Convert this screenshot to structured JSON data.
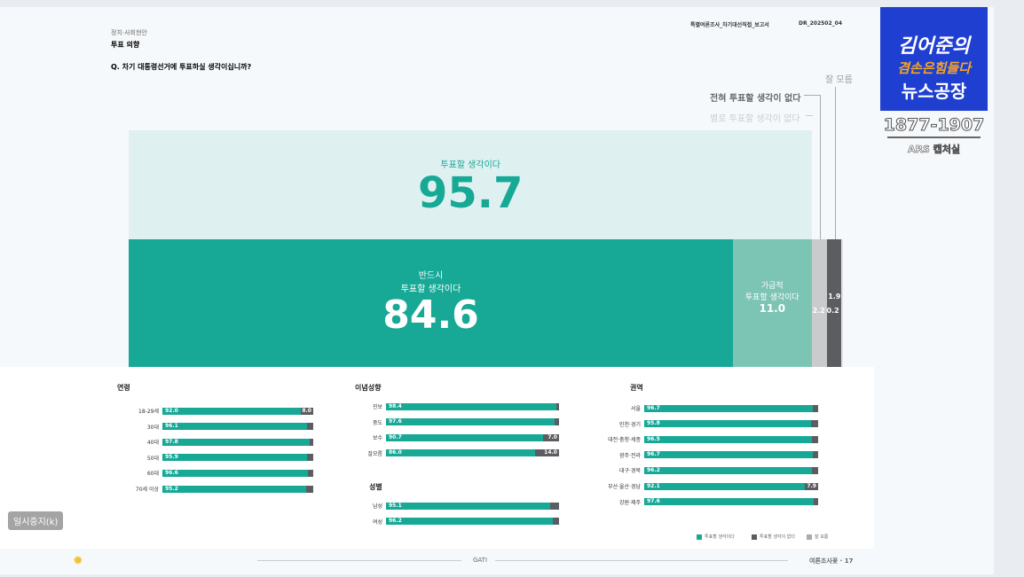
{
  "header": {
    "section": "정치·사회현안",
    "topic": "투표 의향",
    "question": "Q. 차기 대통령선거에 투표하실 생각이십니까?",
    "report": "특별여론조사_차기대선직접_보고서",
    "code": "DR_202502_04"
  },
  "logo": {
    "line1": "김어준의",
    "line2": "겸손은힘들다",
    "line3": "뉴스공장",
    "dates": "1877-1907",
    "sub": "ARS 캡처실"
  },
  "tooltip": "일시중지(k)",
  "footer": {
    "center": "GATI",
    "right": "여론조사꽃 · 17"
  },
  "colors": {
    "teal": "#17a896",
    "light_teal": "#7cc4b4",
    "band": "#dff0f1",
    "light_grey": "#c9cbcd",
    "dark_grey": "#5b5d60"
  },
  "chart_data": [
    {
      "type": "bar",
      "title": "Q. 차기 대통령선거에 투표하실 생각이십니까?",
      "total": {
        "label": "투표할 생각이다",
        "value": 95.7
      },
      "segments": [
        {
          "label": "반드시 투표할 생각이다",
          "value": 84.6,
          "color": "#17a896"
        },
        {
          "label": "가급적 투표할 생각이다",
          "value": 11.0,
          "color": "#7cc4b4"
        },
        {
          "label": "별로 투표할 생각이 없다",
          "value": 2.2,
          "color": "#c9cbcd"
        },
        {
          "label": "전혀 투표할 생각이 없다",
          "value": 1.9,
          "color": "#5b5d60"
        },
        {
          "label": "잘 모름",
          "value": 0.2,
          "color": "#e0e0e0"
        }
      ]
    },
    {
      "type": "bar",
      "title": "연령",
      "categories": [
        "18-29세",
        "30대",
        "40대",
        "50대",
        "60대",
        "70세 이상"
      ],
      "values": [
        92.0,
        96.1,
        97.8,
        95.9,
        96.6,
        95.2
      ],
      "rest_labels": [
        "8.0",
        "",
        "",
        "",
        "",
        ""
      ]
    },
    {
      "type": "bar",
      "title": "이념성향",
      "categories": [
        "진보",
        "중도",
        "보수",
        "잘모름"
      ],
      "values": [
        98.4,
        97.6,
        90.7,
        86.0
      ],
      "rest_labels": [
        "",
        "",
        "7.0",
        "14.0"
      ]
    },
    {
      "type": "bar",
      "title": "성별",
      "categories": [
        "남성",
        "여성"
      ],
      "values": [
        95.1,
        96.2
      ],
      "rest_labels": [
        "",
        ""
      ]
    },
    {
      "type": "bar",
      "title": "권역",
      "categories": [
        "서울",
        "인천·경기",
        "대전·충청·세종",
        "광주·전라",
        "대구·경북",
        "부산·울산·경남",
        "강원·제주"
      ],
      "values": [
        96.7,
        95.8,
        96.5,
        96.7,
        96.2,
        92.1,
        97.6
      ],
      "rest_labels": [
        "",
        "",
        "",
        "",
        "",
        "7.9",
        ""
      ]
    }
  ],
  "legend": [
    "투표할 생각이다",
    "투표할 생각이 없다",
    "잘 모름"
  ]
}
